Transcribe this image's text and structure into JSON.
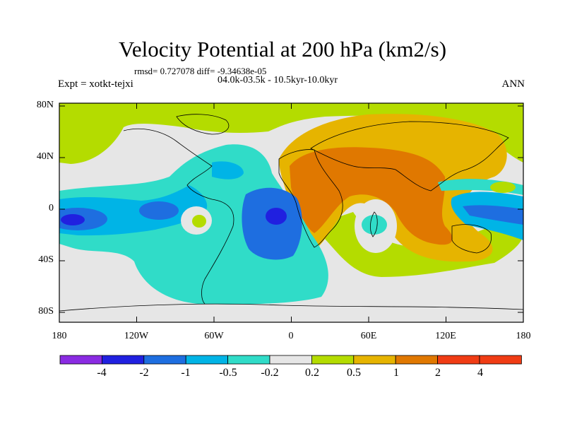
{
  "title": "Velocity Potential at 200 hPa (km2/s)",
  "stats": "rmsd= 0.727078 diff= -9.34638e-05",
  "period": "04.0k-03.5k - 10.5kyr-10.0kyr",
  "experiment": "Expt = xotkt-tejxi",
  "season": "ANN",
  "lat_labels": [
    "80N",
    "40N",
    "0",
    "40S",
    "80S"
  ],
  "lon_labels": [
    "180",
    "120W",
    "60W",
    "0",
    "60E",
    "120E",
    "180"
  ],
  "colorbar": {
    "labels": [
      "-4",
      "-2",
      "-1",
      "-0.5",
      "-0.2",
      "0.2",
      "0.5",
      "1",
      "2",
      "4"
    ],
    "colors": [
      "#8a2be2",
      "#2020e0",
      "#1e6ee0",
      "#00b4e6",
      "#30dcc8",
      "#e6e6e6",
      "#b4dc00",
      "#e6b400",
      "#e07800",
      "#f03c14"
    ]
  },
  "map_colors": {
    "ocean_land_base": "#e6e6e6",
    "cyan": "#30dcc8",
    "light_blue": "#00b4e6",
    "blue": "#1e6ee0",
    "dark_blue": "#2020e0",
    "yellow_green": "#b4dc00",
    "gold": "#e6b400",
    "orange": "#e07800"
  }
}
